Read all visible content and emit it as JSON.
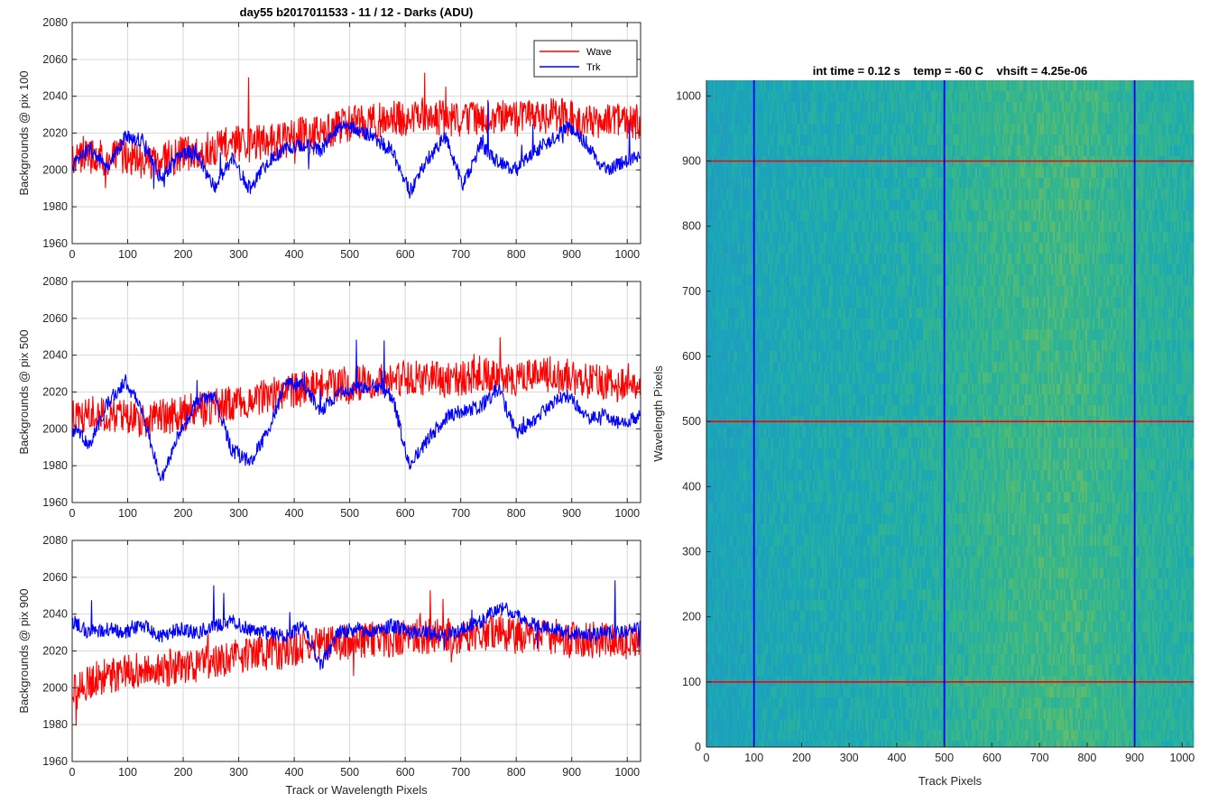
{
  "figure": {
    "title": "day55 b2017011533 - 11 / 12 - Darks (ADU)"
  },
  "chart_data": [
    {
      "type": "line",
      "panel": "top-left",
      "title": "day55 b2017011533 - 11 / 12 - Darks (ADU)",
      "xlabel": "",
      "ylabel": "Backgrounds @ pix 100",
      "xlim": [
        0,
        1024
      ],
      "ylim": [
        1960,
        2080
      ],
      "xticks": [
        0,
        100,
        200,
        300,
        400,
        500,
        600,
        700,
        800,
        900,
        1000
      ],
      "yticks": [
        1960,
        1980,
        2000,
        2020,
        2040,
        2060,
        2080
      ],
      "grid": true,
      "legend": {
        "position": "top-right",
        "entries": [
          "Wave",
          "Trk"
        ]
      },
      "series": [
        {
          "name": "Wave",
          "color": "#ff0000",
          "x": [
            0,
            32,
            64,
            96,
            128,
            160,
            192,
            224,
            256,
            288,
            320,
            352,
            384,
            416,
            448,
            480,
            512,
            544,
            576,
            608,
            640,
            672,
            704,
            736,
            768,
            800,
            832,
            864,
            896,
            928,
            960,
            992,
            1024
          ],
          "values": [
            2004,
            2008,
            2006,
            2008,
            2004,
            2006,
            2008,
            2010,
            2012,
            2014,
            2014,
            2016,
            2016,
            2020,
            2020,
            2024,
            2026,
            2026,
            2028,
            2028,
            2030,
            2028,
            2026,
            2028,
            2030,
            2028,
            2028,
            2030,
            2028,
            2026,
            2028,
            2026,
            2026
          ]
        },
        {
          "name": "Trk",
          "color": "#0000ff",
          "x": [
            0,
            32,
            64,
            96,
            128,
            160,
            192,
            224,
            256,
            288,
            320,
            352,
            384,
            416,
            448,
            480,
            512,
            544,
            576,
            608,
            640,
            672,
            704,
            736,
            768,
            800,
            832,
            864,
            896,
            928,
            960,
            992,
            1024
          ],
          "values": [
            2002,
            2012,
            2000,
            2018,
            2016,
            1995,
            2008,
            2010,
            1990,
            2006,
            1990,
            2004,
            2012,
            2014,
            2010,
            2024,
            2022,
            2018,
            2010,
            1988,
            2006,
            2018,
            1992,
            2014,
            2004,
            2000,
            2010,
            2016,
            2024,
            2014,
            2000,
            2004,
            2008
          ]
        }
      ]
    },
    {
      "type": "line",
      "panel": "middle-left",
      "title": "",
      "xlabel": "",
      "ylabel": "Backgrounds @ pix 500",
      "xlim": [
        0,
        1024
      ],
      "ylim": [
        1960,
        2080
      ],
      "xticks": [
        0,
        100,
        200,
        300,
        400,
        500,
        600,
        700,
        800,
        900,
        1000
      ],
      "yticks": [
        1960,
        1980,
        2000,
        2020,
        2040,
        2060,
        2080
      ],
      "grid": true,
      "series": [
        {
          "name": "Wave",
          "color": "#ff0000",
          "x": [
            0,
            32,
            64,
            96,
            128,
            160,
            192,
            224,
            256,
            288,
            320,
            352,
            384,
            416,
            448,
            480,
            512,
            544,
            576,
            608,
            640,
            672,
            704,
            736,
            768,
            800,
            832,
            864,
            896,
            928,
            960,
            992,
            1024
          ],
          "values": [
            2006,
            2008,
            2008,
            2006,
            2004,
            2006,
            2008,
            2010,
            2012,
            2014,
            2016,
            2018,
            2020,
            2022,
            2024,
            2024,
            2024,
            2026,
            2026,
            2028,
            2028,
            2026,
            2028,
            2030,
            2030,
            2028,
            2028,
            2030,
            2028,
            2026,
            2026,
            2026,
            2026
          ]
        },
        {
          "name": "Trk",
          "color": "#0000ff",
          "x": [
            0,
            32,
            64,
            96,
            128,
            160,
            192,
            224,
            256,
            288,
            320,
            352,
            384,
            416,
            448,
            480,
            512,
            544,
            576,
            608,
            640,
            672,
            704,
            736,
            768,
            800,
            832,
            864,
            896,
            928,
            960,
            992,
            1024
          ],
          "values": [
            2000,
            1992,
            2014,
            2026,
            2008,
            1972,
            1998,
            2014,
            2018,
            1988,
            1982,
            1998,
            2024,
            2024,
            2010,
            2020,
            2022,
            2024,
            2018,
            1980,
            1994,
            2006,
            2010,
            2012,
            2022,
            1998,
            2004,
            2014,
            2018,
            2006,
            2008,
            2002,
            2008
          ]
        }
      ]
    },
    {
      "type": "line",
      "panel": "bottom-left",
      "title": "",
      "xlabel": "Track or Wavelength Pixels",
      "ylabel": "Backgrounds @ pix 900",
      "xlim": [
        0,
        1024
      ],
      "ylim": [
        1960,
        2080
      ],
      "xticks": [
        0,
        100,
        200,
        300,
        400,
        500,
        600,
        700,
        800,
        900,
        1000
      ],
      "yticks": [
        1960,
        1980,
        2000,
        2020,
        2040,
        2060,
        2080
      ],
      "grid": true,
      "series": [
        {
          "name": "Wave",
          "color": "#ff0000",
          "x": [
            0,
            32,
            64,
            96,
            128,
            160,
            192,
            224,
            256,
            288,
            320,
            352,
            384,
            416,
            448,
            480,
            512,
            544,
            576,
            608,
            640,
            672,
            704,
            736,
            768,
            800,
            832,
            864,
            896,
            928,
            960,
            992,
            1024
          ],
          "values": [
            1996,
            2004,
            2006,
            2008,
            2008,
            2010,
            2012,
            2012,
            2014,
            2016,
            2018,
            2018,
            2020,
            2022,
            2024,
            2024,
            2026,
            2026,
            2026,
            2028,
            2028,
            2028,
            2028,
            2030,
            2030,
            2028,
            2028,
            2028,
            2026,
            2026,
            2026,
            2024,
            2024
          ]
        },
        {
          "name": "Trk",
          "color": "#0000ff",
          "x": [
            0,
            32,
            64,
            96,
            128,
            160,
            192,
            224,
            256,
            288,
            320,
            352,
            384,
            416,
            448,
            480,
            512,
            544,
            576,
            608,
            640,
            672,
            704,
            736,
            768,
            800,
            832,
            864,
            896,
            928,
            960,
            992,
            1024
          ],
          "values": [
            2036,
            2030,
            2032,
            2030,
            2034,
            2028,
            2032,
            2030,
            2034,
            2036,
            2032,
            2030,
            2028,
            2034,
            2012,
            2030,
            2032,
            2030,
            2034,
            2030,
            2030,
            2028,
            2032,
            2036,
            2044,
            2040,
            2034,
            2032,
            2030,
            2028,
            2030,
            2030,
            2034
          ]
        }
      ]
    },
    {
      "type": "heatmap",
      "panel": "right",
      "title": "int time = 0.12 s    temp = -60 C    vhsift = 4.25e-06",
      "xlabel": "Track Pixels",
      "ylabel": "Wavelength Pixels",
      "xlim": [
        0,
        1024
      ],
      "ylim": [
        0,
        1024
      ],
      "xticks": [
        0,
        100,
        200,
        300,
        400,
        500,
        600,
        700,
        800,
        900,
        1000
      ],
      "yticks": [
        0,
        100,
        200,
        300,
        400,
        500,
        600,
        700,
        800,
        900,
        1000
      ],
      "grid": false,
      "colormap": "parula",
      "vertical_markers": {
        "color": "#0000ff",
        "x": [
          100,
          500,
          900
        ]
      },
      "horizontal_markers": {
        "color": "#ff0000",
        "y": [
          100,
          500,
          900
        ]
      },
      "column_intensity": {
        "x": [
          0,
          64,
          128,
          192,
          256,
          320,
          384,
          448,
          512,
          576,
          640,
          704,
          768,
          832,
          896,
          960,
          1024
        ],
        "values": [
          0.34,
          0.38,
          0.4,
          0.42,
          0.43,
          0.44,
          0.46,
          0.48,
          0.53,
          0.58,
          0.6,
          0.62,
          0.64,
          0.6,
          0.56,
          0.52,
          0.5
        ]
      }
    }
  ]
}
